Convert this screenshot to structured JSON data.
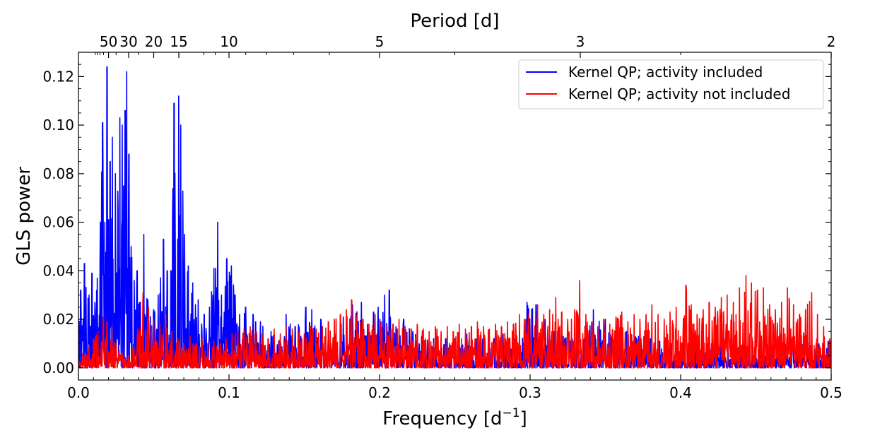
{
  "chart_data": {
    "type": "line",
    "xlabel": "Frequency [d",
    "xlabel_superscript": "−1",
    "xlabel_suffix": "]",
    "ylabel": "GLS power",
    "top_xlabel": "Period [d]",
    "xlim": [
      0.0,
      0.5
    ],
    "ylim": [
      -0.005,
      0.13
    ],
    "x_ticks": [
      0.0,
      0.1,
      0.2,
      0.3,
      0.4,
      0.5
    ],
    "x_tick_labels": [
      "0.0",
      "0.1",
      "0.2",
      "0.3",
      "0.4",
      "0.5"
    ],
    "y_ticks": [
      0.0,
      0.02,
      0.04,
      0.06,
      0.08,
      0.1,
      0.12
    ],
    "y_tick_labels": [
      "0.00",
      "0.02",
      "0.04",
      "0.06",
      "0.08",
      "0.10",
      "0.12"
    ],
    "top_ticks_period": [
      50,
      30,
      20,
      15,
      10,
      5,
      3,
      2
    ],
    "top_tick_labels": [
      "50",
      "30",
      "20",
      "15",
      "10",
      "5",
      "3",
      "2"
    ],
    "grid": false,
    "legend_position": "top-right",
    "series": [
      {
        "name": "Kernel QP; activity included",
        "color": "#0000ff",
        "peaks": [
          [
            0.0015,
            0.032
          ],
          [
            0.004,
            0.043
          ],
          [
            0.007,
            0.03
          ],
          [
            0.009,
            0.039
          ],
          [
            0.011,
            0.027
          ],
          [
            0.0125,
            0.037
          ],
          [
            0.0145,
            0.06
          ],
          [
            0.016,
            0.101
          ],
          [
            0.0175,
            0.06
          ],
          [
            0.019,
            0.124
          ],
          [
            0.021,
            0.085
          ],
          [
            0.0225,
            0.095
          ],
          [
            0.0245,
            0.08
          ],
          [
            0.0275,
            0.103
          ],
          [
            0.029,
            0.1
          ],
          [
            0.03,
            0.075
          ],
          [
            0.031,
            0.106
          ],
          [
            0.032,
            0.122
          ],
          [
            0.0335,
            0.088
          ],
          [
            0.035,
            0.05
          ],
          [
            0.037,
            0.036
          ],
          [
            0.039,
            0.04
          ],
          [
            0.041,
            0.027
          ],
          [
            0.0435,
            0.055
          ],
          [
            0.046,
            0.028
          ],
          [
            0.05,
            0.024
          ],
          [
            0.053,
            0.03
          ],
          [
            0.0565,
            0.053
          ],
          [
            0.059,
            0.04
          ],
          [
            0.0615,
            0.04
          ],
          [
            0.0635,
            0.109
          ],
          [
            0.0665,
            0.112
          ],
          [
            0.068,
            0.1
          ],
          [
            0.0705,
            0.055
          ],
          [
            0.073,
            0.042
          ],
          [
            0.076,
            0.035
          ],
          [
            0.0795,
            0.028
          ],
          [
            0.0835,
            0.022
          ],
          [
            0.087,
            0.025
          ],
          [
            0.09,
            0.041
          ],
          [
            0.0925,
            0.06
          ],
          [
            0.095,
            0.03
          ],
          [
            0.0985,
            0.045
          ],
          [
            0.1015,
            0.042
          ],
          [
            0.104,
            0.03
          ],
          [
            0.107,
            0.022
          ],
          [
            0.111,
            0.025
          ],
          [
            0.116,
            0.022
          ],
          [
            0.121,
            0.019
          ],
          [
            0.128,
            0.015
          ],
          [
            0.133,
            0.011
          ],
          [
            0.138,
            0.022
          ],
          [
            0.144,
            0.017
          ],
          [
            0.151,
            0.025
          ],
          [
            0.155,
            0.024
          ],
          [
            0.161,
            0.02
          ],
          [
            0.166,
            0.013
          ],
          [
            0.171,
            0.014
          ],
          [
            0.176,
            0.021
          ],
          [
            0.182,
            0.026
          ],
          [
            0.188,
            0.027
          ],
          [
            0.192,
            0.018
          ],
          [
            0.196,
            0.023
          ],
          [
            0.199,
            0.025
          ],
          [
            0.2035,
            0.03
          ],
          [
            0.207,
            0.021
          ],
          [
            0.2065,
            0.032
          ],
          [
            0.211,
            0.017
          ],
          [
            0.216,
            0.02
          ],
          [
            0.222,
            0.015
          ],
          [
            0.228,
            0.013
          ],
          [
            0.236,
            0.012
          ],
          [
            0.244,
            0.012
          ],
          [
            0.25,
            0.012
          ],
          [
            0.258,
            0.014
          ],
          [
            0.264,
            0.012
          ],
          [
            0.27,
            0.012
          ],
          [
            0.276,
            0.012
          ],
          [
            0.282,
            0.014
          ],
          [
            0.29,
            0.012
          ],
          [
            0.298,
            0.027
          ],
          [
            0.304,
            0.026
          ],
          [
            0.31,
            0.02
          ],
          [
            0.316,
            0.015
          ],
          [
            0.322,
            0.013
          ],
          [
            0.328,
            0.012
          ],
          [
            0.336,
            0.012
          ],
          [
            0.342,
            0.024
          ],
          [
            0.35,
            0.02
          ],
          [
            0.358,
            0.017
          ],
          [
            0.364,
            0.015
          ],
          [
            0.372,
            0.013
          ],
          [
            0.38,
            0.012
          ],
          [
            0.386,
            0.011
          ],
          [
            0.394,
            0.01
          ],
          [
            0.402,
            0.009
          ],
          [
            0.41,
            0.01
          ],
          [
            0.418,
            0.01
          ],
          [
            0.426,
            0.01
          ],
          [
            0.434,
            0.01
          ],
          [
            0.442,
            0.01
          ],
          [
            0.45,
            0.01
          ],
          [
            0.458,
            0.011
          ],
          [
            0.466,
            0.01
          ],
          [
            0.474,
            0.01
          ],
          [
            0.482,
            0.011
          ],
          [
            0.49,
            0.01
          ],
          [
            0.498,
            0.011
          ]
        ]
      },
      {
        "name": "Kernel QP; activity not included",
        "color": "#ff0000",
        "peaks": [
          [
            0.003,
            0.006
          ],
          [
            0.007,
            0.009
          ],
          [
            0.01,
            0.012
          ],
          [
            0.013,
            0.015
          ],
          [
            0.0165,
            0.021
          ],
          [
            0.019,
            0.019
          ],
          [
            0.022,
            0.017
          ],
          [
            0.025,
            0.01
          ],
          [
            0.029,
            0.006
          ],
          [
            0.033,
            0.005
          ],
          [
            0.036,
            0.008
          ],
          [
            0.0395,
            0.016
          ],
          [
            0.043,
            0.031
          ],
          [
            0.0465,
            0.025
          ],
          [
            0.05,
            0.02
          ],
          [
            0.054,
            0.018
          ],
          [
            0.058,
            0.022
          ],
          [
            0.062,
            0.015
          ],
          [
            0.066,
            0.012
          ],
          [
            0.07,
            0.01
          ],
          [
            0.074,
            0.013
          ],
          [
            0.078,
            0.01
          ],
          [
            0.082,
            0.012
          ],
          [
            0.086,
            0.01
          ],
          [
            0.09,
            0.011
          ],
          [
            0.094,
            0.01
          ],
          [
            0.098,
            0.012
          ],
          [
            0.102,
            0.014
          ],
          [
            0.106,
            0.015
          ],
          [
            0.11,
            0.016
          ],
          [
            0.114,
            0.017
          ],
          [
            0.118,
            0.015
          ],
          [
            0.122,
            0.014
          ],
          [
            0.126,
            0.012
          ],
          [
            0.13,
            0.016
          ],
          [
            0.134,
            0.014
          ],
          [
            0.138,
            0.017
          ],
          [
            0.142,
            0.016
          ],
          [
            0.146,
            0.015
          ],
          [
            0.15,
            0.014
          ],
          [
            0.154,
            0.017
          ],
          [
            0.158,
            0.016
          ],
          [
            0.162,
            0.017
          ],
          [
            0.166,
            0.019
          ],
          [
            0.17,
            0.02
          ],
          [
            0.174,
            0.022
          ],
          [
            0.178,
            0.024
          ],
          [
            0.1815,
            0.028
          ],
          [
            0.185,
            0.022
          ],
          [
            0.189,
            0.02
          ],
          [
            0.193,
            0.018
          ],
          [
            0.197,
            0.022
          ],
          [
            0.201,
            0.019
          ],
          [
            0.205,
            0.017
          ],
          [
            0.209,
            0.018
          ],
          [
            0.213,
            0.02
          ],
          [
            0.217,
            0.017
          ],
          [
            0.221,
            0.016
          ],
          [
            0.225,
            0.018
          ],
          [
            0.229,
            0.016
          ],
          [
            0.233,
            0.015
          ],
          [
            0.237,
            0.017
          ],
          [
            0.241,
            0.015
          ],
          [
            0.245,
            0.017
          ],
          [
            0.249,
            0.015
          ],
          [
            0.253,
            0.018
          ],
          [
            0.257,
            0.016
          ],
          [
            0.261,
            0.017
          ],
          [
            0.265,
            0.019
          ],
          [
            0.269,
            0.017
          ],
          [
            0.273,
            0.016
          ],
          [
            0.277,
            0.018
          ],
          [
            0.281,
            0.017
          ],
          [
            0.285,
            0.019
          ],
          [
            0.289,
            0.018
          ],
          [
            0.293,
            0.022
          ],
          [
            0.297,
            0.02
          ],
          [
            0.301,
            0.024
          ],
          [
            0.305,
            0.026
          ],
          [
            0.309,
            0.022
          ],
          [
            0.313,
            0.024
          ],
          [
            0.317,
            0.029
          ],
          [
            0.321,
            0.023
          ],
          [
            0.325,
            0.02
          ],
          [
            0.3295,
            0.024
          ],
          [
            0.333,
            0.036
          ],
          [
            0.337,
            0.022
          ],
          [
            0.341,
            0.019
          ],
          [
            0.345,
            0.017
          ],
          [
            0.349,
            0.02
          ],
          [
            0.353,
            0.018
          ],
          [
            0.357,
            0.021
          ],
          [
            0.361,
            0.023
          ],
          [
            0.365,
            0.019
          ],
          [
            0.369,
            0.022
          ],
          [
            0.373,
            0.02
          ],
          [
            0.377,
            0.022
          ],
          [
            0.381,
            0.026
          ],
          [
            0.385,
            0.022
          ],
          [
            0.389,
            0.02
          ],
          [
            0.393,
            0.023
          ],
          [
            0.397,
            0.025
          ],
          [
            0.4035,
            0.034
          ],
          [
            0.407,
            0.026
          ],
          [
            0.411,
            0.022
          ],
          [
            0.415,
            0.024
          ],
          [
            0.419,
            0.027
          ],
          [
            0.423,
            0.025
          ],
          [
            0.427,
            0.029
          ],
          [
            0.431,
            0.03
          ],
          [
            0.435,
            0.027
          ],
          [
            0.439,
            0.033
          ],
          [
            0.4435,
            0.038
          ],
          [
            0.447,
            0.035
          ],
          [
            0.451,
            0.032
          ],
          [
            0.455,
            0.033
          ],
          [
            0.459,
            0.026
          ],
          [
            0.463,
            0.024
          ],
          [
            0.467,
            0.027
          ],
          [
            0.471,
            0.033
          ],
          [
            0.475,
            0.026
          ],
          [
            0.479,
            0.022
          ],
          [
            0.483,
            0.024
          ],
          [
            0.487,
            0.031
          ],
          [
            0.491,
            0.022
          ],
          [
            0.495,
            0.017
          ],
          [
            0.499,
            0.012
          ]
        ]
      }
    ]
  }
}
